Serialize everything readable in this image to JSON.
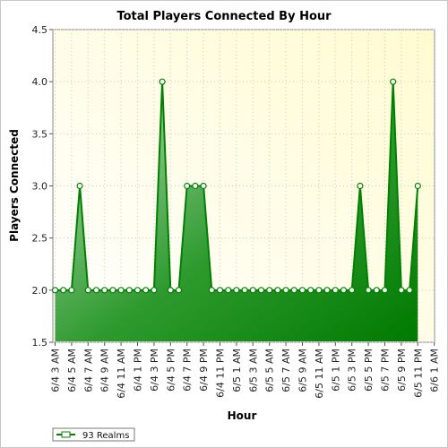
{
  "chart_data": {
    "type": "area",
    "title": "Total Players Connected By Hour",
    "xlabel": "Hour",
    "ylabel": "Players Connected",
    "ylim": [
      1.5,
      4.5
    ],
    "yticks": [
      "1.5",
      "2.0",
      "2.5",
      "3.0",
      "3.5",
      "4.0",
      "4.5"
    ],
    "x_tick_labels": [
      "6/4 3 AM",
      "6/4 5 AM",
      "6/4 7 AM",
      "6/4 9 AM",
      "6/4 11 AM",
      "6/4 1 PM",
      "6/4 3 PM",
      "6/4 5 PM",
      "6/4 7 PM",
      "6/4 9 PM",
      "6/4 11 PM",
      "6/5 1 AM",
      "6/5 3 AM",
      "6/5 5 AM",
      "6/5 7 AM",
      "6/5 9 AM",
      "6/5 11 AM",
      "6/5 1 PM",
      "6/5 3 PM",
      "6/5 5 PM",
      "6/5 7 PM",
      "6/5 9 PM",
      "6/5 11 PM",
      "6/6 1 AM"
    ],
    "grid": true,
    "legend_position": "bottom-left",
    "series": [
      {
        "name": "93 Realms",
        "color": "#008000",
        "values": [
          2,
          2,
          2,
          3,
          2,
          2,
          2,
          2,
          2,
          2,
          2,
          2,
          2,
          4,
          2,
          2,
          3,
          3,
          3,
          2,
          2,
          2,
          2,
          2,
          2,
          2,
          2,
          2,
          2,
          2,
          2,
          2,
          2,
          2,
          2,
          2,
          2,
          3,
          2,
          2,
          2,
          4,
          2,
          2,
          3
        ]
      }
    ]
  }
}
